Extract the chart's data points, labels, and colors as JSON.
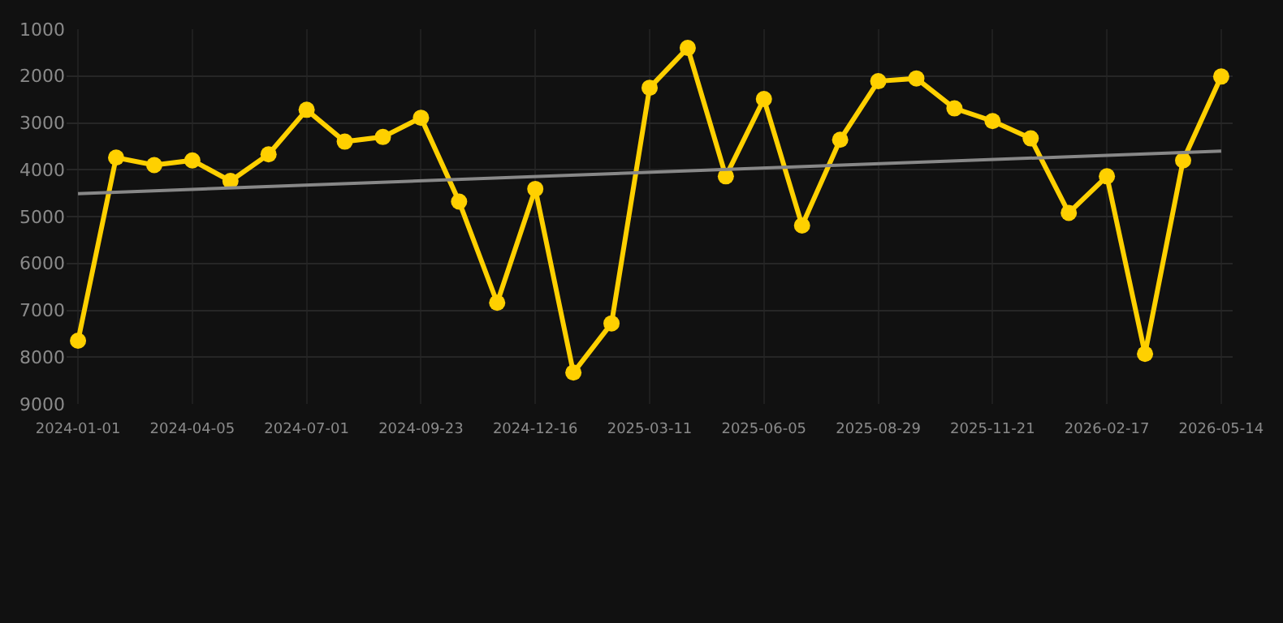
{
  "chart_data": {
    "type": "line",
    "categories": [
      "2024-01-01",
      null,
      null,
      "2024-04-05",
      null,
      null,
      "2024-07-01",
      null,
      null,
      "2024-09-23",
      null,
      null,
      "2024-12-16",
      null,
      null,
      "2025-03-11",
      null,
      null,
      "2025-06-05",
      null,
      null,
      "2025-08-29",
      null,
      null,
      "2025-11-21",
      null,
      null,
      "2026-02-17",
      null,
      null,
      "2026-05-14"
    ],
    "series": [
      {
        "color": "#ffd000",
        "marker": "circle",
        "values": [
          7650,
          3740,
          3900,
          3800,
          4240,
          3670,
          2720,
          3400,
          3300,
          2890,
          4680,
          6840,
          4410,
          8330,
          7280,
          2250,
          1400,
          4140,
          2490,
          5190,
          3360,
          2110,
          2050,
          2690,
          2960,
          3330,
          4920,
          4140,
          7930,
          3800,
          2010
        ]
      },
      {
        "color": "#888888",
        "marker": "none",
        "values": [
          4510,
          null,
          null,
          null,
          null,
          null,
          null,
          null,
          null,
          null,
          null,
          null,
          null,
          null,
          null,
          null,
          null,
          null,
          null,
          null,
          null,
          null,
          null,
          null,
          null,
          null,
          null,
          null,
          null,
          null,
          3600
        ]
      }
    ],
    "ylim": [
      9000,
      1000
    ],
    "yticks": [
      1000,
      2000,
      3000,
      4000,
      5000,
      6000,
      7000,
      8000,
      9000
    ],
    "grid": true
  }
}
